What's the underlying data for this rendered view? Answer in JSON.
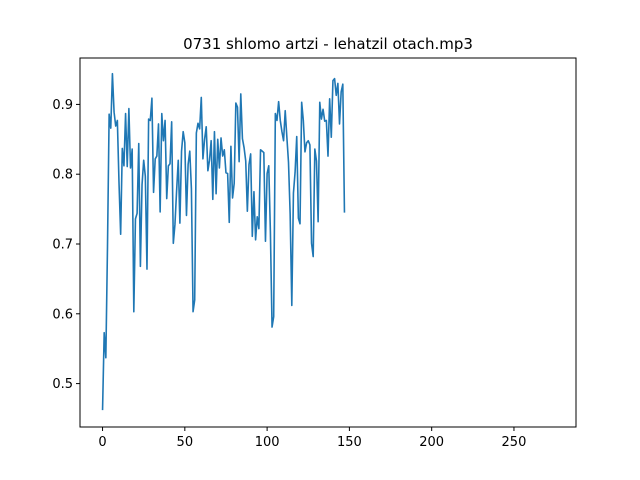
{
  "chart_data": {
    "type": "line",
    "title": "0731 shlomo artzi - lehatzil otach.mp3",
    "xlabel": "",
    "ylabel": "",
    "xlim": [
      -13.7,
      287.7
    ],
    "ylim": [
      0.4378,
      0.9665
    ],
    "x_ticks": [
      0,
      50,
      100,
      150,
      200,
      250
    ],
    "y_ticks": [
      0.5,
      0.6,
      0.7,
      0.8,
      0.9
    ],
    "grid": false,
    "color": "#1f77b4",
    "series": [
      {
        "x_start": 0,
        "x_step": 1,
        "values": [
          0.462,
          0.573,
          0.537,
          0.695,
          0.886,
          0.866,
          0.944,
          0.889,
          0.869,
          0.877,
          0.788,
          0.714,
          0.837,
          0.812,
          0.887,
          0.811,
          0.894,
          0.809,
          0.836,
          0.603,
          0.736,
          0.744,
          0.844,
          0.668,
          0.785,
          0.82,
          0.797,
          0.664,
          0.879,
          0.877,
          0.909,
          0.774,
          0.822,
          0.826,
          0.872,
          0.746,
          0.887,
          0.848,
          0.877,
          0.765,
          0.812,
          0.815,
          0.875,
          0.701,
          0.728,
          0.776,
          0.82,
          0.73,
          0.833,
          0.861,
          0.845,
          0.741,
          0.814,
          0.833,
          0.779,
          0.603,
          0.62,
          0.859,
          0.873,
          0.865,
          0.91,
          0.822,
          0.85,
          0.868,
          0.805,
          0.82,
          0.848,
          0.764,
          0.861,
          0.772,
          0.85,
          0.809,
          0.852,
          0.826,
          0.835,
          0.802,
          0.801,
          0.731,
          0.84,
          0.766,
          0.787,
          0.902,
          0.896,
          0.818,
          0.915,
          0.851,
          0.838,
          0.819,
          0.747,
          0.814,
          0.829,
          0.711,
          0.775,
          0.706,
          0.739,
          0.722,
          0.835,
          0.833,
          0.831,
          0.704,
          0.801,
          0.812,
          0.717,
          0.581,
          0.596,
          0.887,
          0.877,
          0.904,
          0.877,
          0.861,
          0.848,
          0.891,
          0.853,
          0.817,
          0.743,
          0.612,
          0.773,
          0.803,
          0.854,
          0.737,
          0.729,
          0.903,
          0.877,
          0.832,
          0.845,
          0.848,
          0.842,
          0.701,
          0.682,
          0.836,
          0.819,
          0.732,
          0.903,
          0.879,
          0.893,
          0.876,
          0.877,
          0.826,
          0.908,
          0.853,
          0.934,
          0.937,
          0.913,
          0.93,
          0.872,
          0.918,
          0.929,
          0.745
        ]
      }
    ]
  }
}
